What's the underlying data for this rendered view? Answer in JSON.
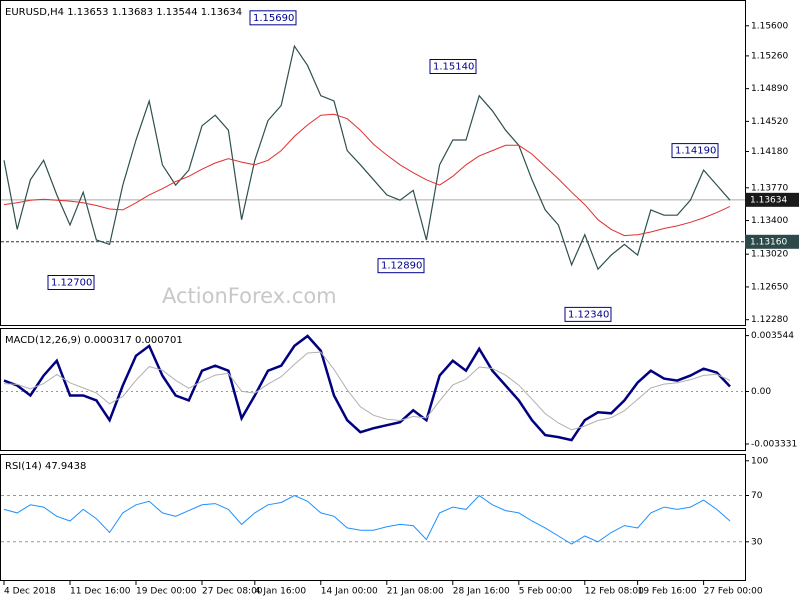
{
  "chart_data": [
    {
      "type": "line",
      "title": "EURUSD,H4  1.13653 1.13683 1.13544 1.13634",
      "watermark": "ActionForex.com",
      "series": [
        {
          "color": "#2f4f4f",
          "values": [
            1.1408,
            1.133,
            1.1386,
            1.1408,
            1.1369,
            1.1335,
            1.1372,
            1.1318,
            1.1313,
            1.138,
            1.1431,
            1.1475,
            1.1403,
            1.138,
            1.1397,
            1.1447,
            1.1459,
            1.1442,
            1.1341,
            1.1408,
            1.1453,
            1.147,
            1.1537,
            1.1515,
            1.1481,
            1.1475,
            1.1419,
            1.1403,
            1.1386,
            1.1369,
            1.1363,
            1.1374,
            1.1318,
            1.1403,
            1.1431,
            1.1431,
            1.1481,
            1.1464,
            1.1442,
            1.1425,
            1.1386,
            1.1352,
            1.1335,
            1.129,
            1.1324,
            1.1285,
            1.1301,
            1.1313,
            1.1301,
            1.1352,
            1.1346,
            1.1346,
            1.1363,
            1.1397,
            1.138,
            1.1363
          ]
        },
        {
          "color": "#e03030",
          "values": [
            1.1358,
            1.136,
            1.1363,
            1.1364,
            1.1363,
            1.1362,
            1.136,
            1.1357,
            1.1353,
            1.1352,
            1.136,
            1.1369,
            1.1376,
            1.1384,
            1.139,
            1.1398,
            1.1405,
            1.141,
            1.1406,
            1.1403,
            1.1408,
            1.1419,
            1.1435,
            1.1448,
            1.1459,
            1.146,
            1.1455,
            1.1442,
            1.1426,
            1.1414,
            1.1403,
            1.1394,
            1.1386,
            1.138,
            1.139,
            1.1403,
            1.1413,
            1.1419,
            1.1425,
            1.1425,
            1.1415,
            1.1401,
            1.1387,
            1.1372,
            1.1358,
            1.1341,
            1.133,
            1.1323,
            1.1324,
            1.1327,
            1.1331,
            1.1334,
            1.1338,
            1.1343,
            1.1349,
            1.1356
          ]
        }
      ],
      "ylim": [
        1.1222,
        1.1588
      ],
      "yticks": [
        {
          "value": 1.156,
          "label": "1.15600"
        },
        {
          "value": 1.1526,
          "label": "1.15260"
        },
        {
          "value": 1.1489,
          "label": "1.14890"
        },
        {
          "value": 1.1452,
          "label": "1.14520"
        },
        {
          "value": 1.1418,
          "label": "1.14180"
        },
        {
          "value": 1.1377,
          "label": "1.13770"
        },
        {
          "value": 1.134,
          "label": "1.13400"
        },
        {
          "value": 1.1302,
          "label": "1.13020"
        },
        {
          "value": 1.1265,
          "label": "1.12650"
        },
        {
          "value": 1.1228,
          "label": "1.12280"
        }
      ],
      "hlines": [
        {
          "value": 1.13634,
          "label": "1.13634"
        },
        {
          "value": 1.1316,
          "label": "1.13160"
        }
      ],
      "annotations": [
        {
          "value": 1.1569,
          "label": "1.15690"
        },
        {
          "value": 1.1514,
          "label": "1.15140"
        },
        {
          "value": 1.1419,
          "label": "1.14190"
        },
        {
          "value": 1.1289,
          "label": "1.12890"
        },
        {
          "value": 1.127,
          "label": "1.12700"
        },
        {
          "value": 1.1234,
          "label": "1.12340"
        }
      ]
    },
    {
      "type": "line",
      "title": "MACD(12,26,9) 0.000317 0.000701",
      "series": [
        {
          "color": "#000080",
          "values": [
            0.000692,
            0.000377,
            -0.000252,
            0.001006,
            0.00195,
            -0.000252,
            -0.000252,
            -0.000566,
            -0.001824,
            0.000377,
            0.002264,
            0.002893,
            0.001006,
            -0.000252,
            -0.000566,
            0.001321,
            0.001635,
            0.001321,
            -0.001698,
            -0.000252,
            0.001321,
            0.001635,
            0.002893,
            0.003522,
            0.002579,
            -0.000252,
            -0.001824,
            -0.002579,
            -0.002327,
            -0.002139,
            -0.00195,
            -0.001195,
            -0.001824,
            0.001006,
            0.00195,
            0.001321,
            0.002705,
            0.001321,
            0.000377,
            -0.000566,
            -0.001824,
            -0.002768,
            -0.002893,
            -0.003082,
            -0.001824,
            -0.001321,
            -0.001384,
            -0.000566,
            0.000566,
            0.001321,
            0.000818,
            0.000692,
            0.001006,
            0.001447,
            0.001195,
            0.000317
          ]
        },
        {
          "color": "#b0b0b0",
          "values": [
            0.0005,
            0.00045,
            0.00017,
            0.0005,
            0.00108,
            0.00055,
            0.00023,
            -9e-05,
            -0.00078,
            -0.00032,
            0.00071,
            0.00158,
            0.00135,
            0.00071,
            0.0002,
            0.00065,
            0.00104,
            0.00115,
            1e-05,
            -0.0001,
            0.00047,
            0.00094,
            0.00172,
            0.00244,
            0.0025,
            0.0014,
            0.00011,
            -0.00097,
            -0.00151,
            -0.00176,
            -0.00184,
            -0.00158,
            -0.00168,
            -0.0006,
            0.00042,
            0.00078,
            0.00155,
            0.00146,
            0.00103,
            0.0004,
            -0.00049,
            -0.0014,
            -0.002,
            -0.00243,
            -0.00219,
            -0.00184,
            -0.00166,
            -0.00122,
            -0.0005,
            0.00023,
            0.00047,
            0.00056,
            0.00074,
            0.00102,
            0.00109,
            0.000701
          ]
        }
      ],
      "ylim": [
        -0.003711,
        0.003963
      ],
      "yticks": [
        0.003544,
        {
          "value": 0,
          "label": "0.00"
        },
        -0.003331
      ]
    },
    {
      "type": "line",
      "title": "RSI(14) 47.9438",
      "series": [
        {
          "color": "#1e90ff",
          "values": [
            58,
            55,
            62,
            60,
            52,
            48,
            58,
            50,
            38,
            55,
            62,
            65,
            55,
            52,
            57,
            62,
            63,
            58,
            45,
            55,
            62,
            64,
            70,
            65,
            55,
            52,
            42,
            40,
            40,
            43,
            45,
            44,
            32,
            55,
            60,
            58,
            70,
            62,
            57,
            55,
            48,
            42,
            35,
            28,
            35,
            30,
            38,
            44,
            42,
            55,
            60,
            58,
            60,
            66,
            58,
            47.9438
          ]
        }
      ],
      "ylim": [
        -3,
        105
      ],
      "yticks": [
        100,
        70,
        30
      ],
      "levels": [
        70,
        30
      ],
      "categories": [
        "4 Dec 2018",
        null,
        null,
        null,
        null,
        "11 Dec 16:00",
        null,
        null,
        null,
        null,
        "19 Dec 00:00",
        null,
        null,
        null,
        null,
        "27 Dec 08:00",
        null,
        null,
        null,
        "4 Jan 16:00",
        null,
        null,
        null,
        null,
        "14 Jan 00:00",
        null,
        null,
        null,
        null,
        "21 Jan 08:00",
        null,
        null,
        null,
        null,
        "28 Jan 16:00",
        null,
        null,
        null,
        null,
        "5 Feb 00:00",
        null,
        null,
        null,
        null,
        "12 Feb 08:00",
        null,
        null,
        null,
        "19 Feb 16:00",
        null,
        null,
        null,
        null,
        "27 Feb 00:00",
        null,
        null
      ]
    }
  ]
}
